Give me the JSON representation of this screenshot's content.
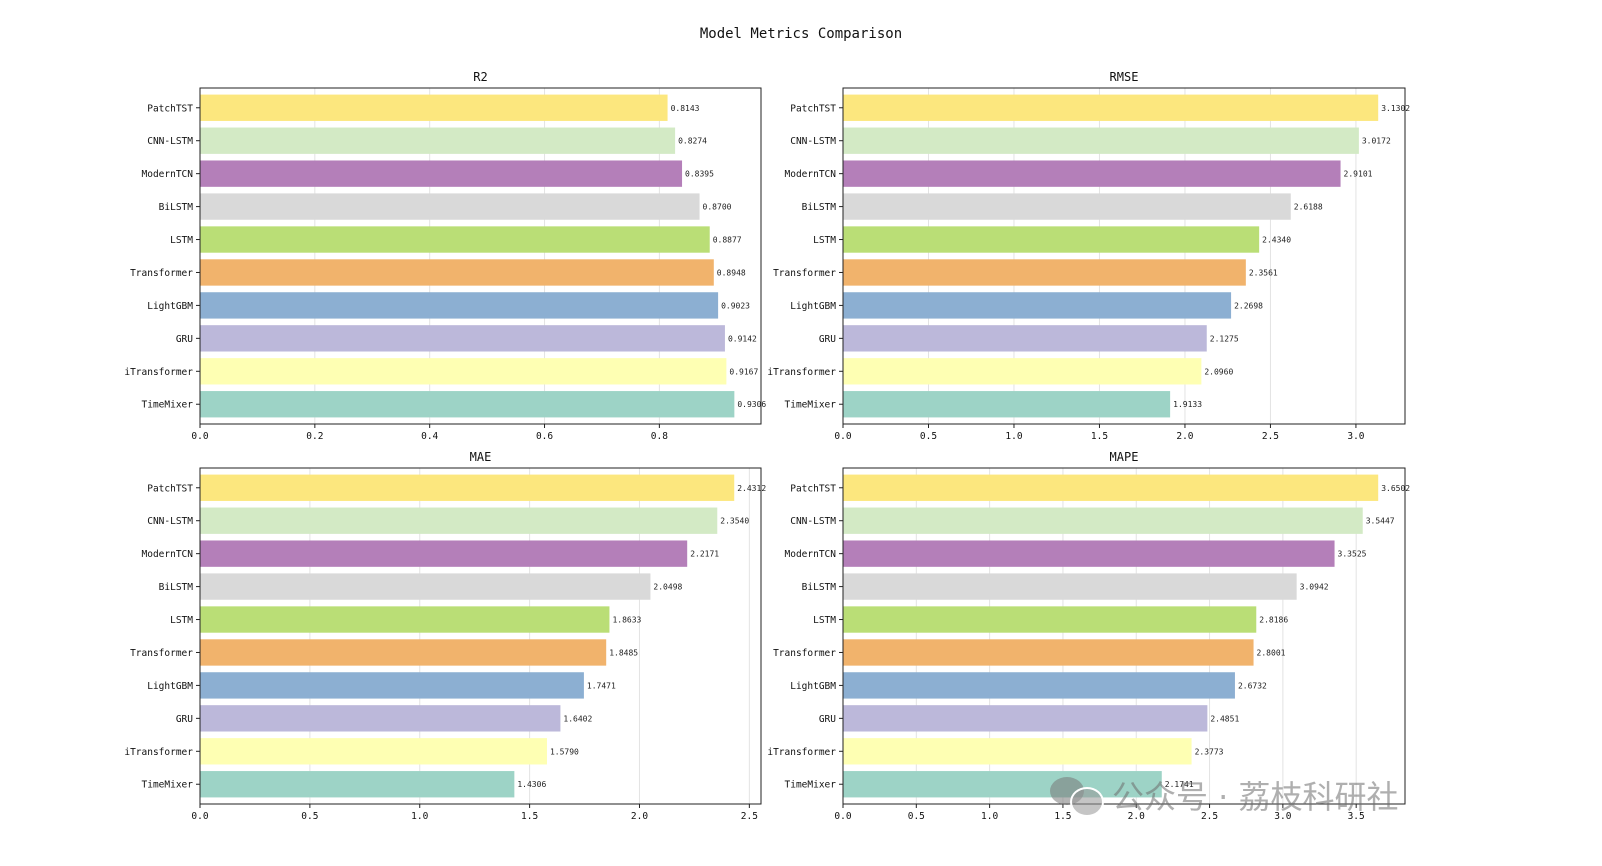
{
  "figure_title": "Model Metrics Comparison",
  "watermark": {
    "text": "公众号 · 荔枝科研社"
  },
  "colors": [
    "#fce77e",
    "#d3eac5",
    "#b47fb9",
    "#d9d9d9",
    "#bade76",
    "#f1b36c",
    "#8cafd2",
    "#bcb8da",
    "#feffb3",
    "#9dd3c6"
  ],
  "chart_data": [
    {
      "type": "bar",
      "orientation": "horizontal",
      "title": "R2",
      "categories": [
        "PatchTST",
        "CNN-LSTM",
        "ModernTCN",
        "BiLSTM",
        "LSTM",
        "Transformer",
        "LightGBM",
        "GRU",
        "iTransformer",
        "TimeMixer"
      ],
      "values": [
        0.8143,
        0.8274,
        0.8395,
        0.87,
        0.8877,
        0.8948,
        0.9023,
        0.9142,
        0.9167,
        0.9306
      ],
      "value_labels": [
        "0.8143",
        "0.8274",
        "0.8395",
        "0.8700",
        "0.8877",
        "0.8948",
        "0.9023",
        "0.9142",
        "0.9167",
        "0.9306"
      ],
      "xlim": [
        0,
        0.977
      ],
      "xticks": [
        0.0,
        0.2,
        0.4,
        0.6,
        0.8
      ],
      "xtick_labels": [
        "0.0",
        "0.2",
        "0.4",
        "0.6",
        "0.8"
      ],
      "grid": "x"
    },
    {
      "type": "bar",
      "orientation": "horizontal",
      "title": "RMSE",
      "categories": [
        "PatchTST",
        "CNN-LSTM",
        "ModernTCN",
        "BiLSTM",
        "LSTM",
        "Transformer",
        "LightGBM",
        "GRU",
        "iTransformer",
        "TimeMixer"
      ],
      "values": [
        3.1302,
        3.0172,
        2.9101,
        2.6188,
        2.434,
        2.3561,
        2.2698,
        2.1275,
        2.096,
        1.9133
      ],
      "value_labels": [
        "3.1302",
        "3.0172",
        "2.9101",
        "2.6188",
        "2.4340",
        "2.3561",
        "2.2698",
        "2.1275",
        "2.0960",
        "1.9133"
      ],
      "xlim": [
        0,
        3.287
      ],
      "xticks": [
        0.0,
        0.5,
        1.0,
        1.5,
        2.0,
        2.5,
        3.0
      ],
      "xtick_labels": [
        "0.0",
        "0.5",
        "1.0",
        "1.5",
        "2.0",
        "2.5",
        "3.0"
      ],
      "grid": "x"
    },
    {
      "type": "bar",
      "orientation": "horizontal",
      "title": "MAE",
      "categories": [
        "PatchTST",
        "CNN-LSTM",
        "ModernTCN",
        "BiLSTM",
        "LSTM",
        "Transformer",
        "LightGBM",
        "GRU",
        "iTransformer",
        "TimeMixer"
      ],
      "values": [
        2.4312,
        2.354,
        2.2171,
        2.0498,
        1.8633,
        1.8485,
        1.7471,
        1.6402,
        1.579,
        1.4306
      ],
      "value_labels": [
        "2.4312",
        "2.3540",
        "2.2171",
        "2.0498",
        "1.8633",
        "1.8485",
        "1.7471",
        "1.6402",
        "1.5790",
        "1.4306"
      ],
      "xlim": [
        0,
        2.553
      ],
      "xticks": [
        0.0,
        0.5,
        1.0,
        1.5,
        2.0,
        2.5
      ],
      "xtick_labels": [
        "0.0",
        "0.5",
        "1.0",
        "1.5",
        "2.0",
        "2.5"
      ],
      "grid": "x"
    },
    {
      "type": "bar",
      "orientation": "horizontal",
      "title": "MAPE",
      "categories": [
        "PatchTST",
        "CNN-LSTM",
        "ModernTCN",
        "BiLSTM",
        "LSTM",
        "Transformer",
        "LightGBM",
        "GRU",
        "iTransformer",
        "TimeMixer"
      ],
      "values": [
        3.6502,
        3.5447,
        3.3525,
        3.0942,
        2.8186,
        2.8001,
        2.6732,
        2.4851,
        2.3773,
        2.1741
      ],
      "value_labels": [
        "3.6502",
        "3.5447",
        "3.3525",
        "3.0942",
        "2.8186",
        "2.8001",
        "2.6732",
        "2.4851",
        "2.3773",
        "2.1741"
      ],
      "xlim": [
        0,
        3.833
      ],
      "xticks": [
        0.0,
        0.5,
        1.0,
        1.5,
        2.0,
        2.5,
        3.0,
        3.5
      ],
      "xtick_labels": [
        "0.0",
        "0.5",
        "1.0",
        "1.5",
        "2.0",
        "2.5",
        "3.0",
        "3.5"
      ],
      "grid": "x"
    }
  ]
}
